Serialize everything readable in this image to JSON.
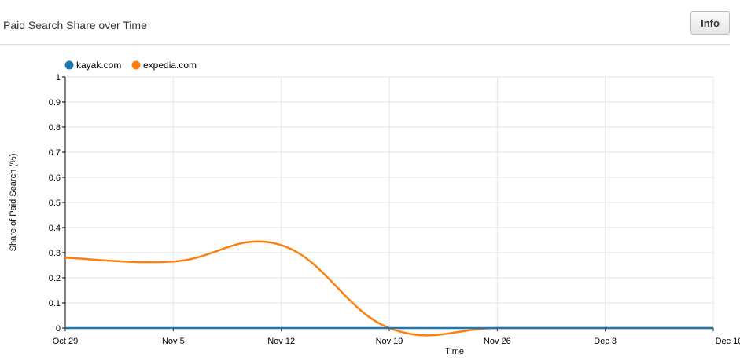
{
  "header": {
    "title": "Paid Search Share over Time",
    "info_label": "Info"
  },
  "chart_data": {
    "type": "line",
    "xlabel": "Time",
    "ylabel": "Share of Paid Search (%)",
    "x_categories": [
      "Oct 29",
      "Nov 5",
      "Nov 12",
      "Nov 19",
      "Nov 26",
      "Dec 3",
      "Dec 10"
    ],
    "y_ticks": [
      "0",
      "0.1",
      "0.2",
      "0.3",
      "0.4",
      "0.5",
      "0.6",
      "0.7",
      "0.8",
      "0.9",
      "1"
    ],
    "ylim": [
      0,
      1
    ],
    "grid": true,
    "legend_position": "top-left",
    "series": [
      {
        "name": "kayak.com",
        "color": "#1f77b4",
        "values": [
          0,
          0,
          0,
          0,
          0,
          0,
          0
        ]
      },
      {
        "name": "expedia.com",
        "color": "#ff7f0e",
        "values": [
          0.28,
          0.265,
          0.33,
          0.0,
          0.0,
          0.0,
          0.0
        ]
      }
    ]
  }
}
